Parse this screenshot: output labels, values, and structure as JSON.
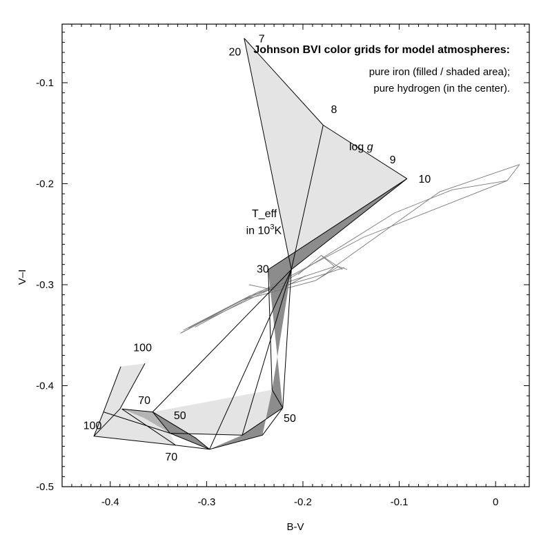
{
  "chart_data": {
    "type": "line",
    "title": "Johnson BVI color grids for model atmospheres:",
    "notes": [
      "pure iron (filled / shaded area);",
      "pure hydrogen (in the center)."
    ],
    "xlabel": "B-V",
    "ylabel": "V–I",
    "xlim": [
      -0.45,
      0.035
    ],
    "ylim": [
      -0.5,
      -0.042
    ],
    "x_ticks": [
      -0.4,
      -0.3,
      -0.2,
      -0.1,
      0
    ],
    "x_tick_labels": [
      "-0.4",
      "-0.3",
      "-0.2",
      "-0.1",
      "0"
    ],
    "y_ticks": [
      -0.1,
      -0.2,
      -0.3,
      -0.4,
      -0.5
    ],
    "y_tick_labels": [
      "-0.1",
      "-0.2",
      "-0.3",
      "-0.4",
      "-0.5"
    ],
    "grid": false,
    "colors": {
      "light_fill": "#e4e4e4",
      "mid_fill": "#b4b4b4",
      "dark_fill": "#8c8c8c",
      "iron_line": "#000000",
      "hydrogen_line": "#7a7a7a"
    },
    "iron_grid": {
      "fills": [
        {
          "shade": "light",
          "points": [
            [
              -0.261,
              -0.056
            ],
            [
              -0.179,
              -0.142
            ],
            [
              -0.092,
              -0.195
            ],
            [
              -0.212,
              -0.285
            ]
          ]
        },
        {
          "shade": "dark",
          "points": [
            [
              -0.092,
              -0.195
            ],
            [
              -0.212,
              -0.285
            ],
            [
              -0.232,
              -0.404
            ],
            [
              -0.221,
              -0.422
            ],
            [
              -0.236,
              -0.285
            ]
          ]
        },
        {
          "shade": "light",
          "points": [
            [
              -0.221,
              -0.422
            ],
            [
              -0.232,
              -0.404
            ],
            [
              -0.356,
              -0.426
            ],
            [
              -0.338,
              -0.447
            ],
            [
              -0.263,
              -0.449
            ]
          ]
        },
        {
          "shade": "dark",
          "points": [
            [
              -0.221,
              -0.422
            ],
            [
              -0.232,
              -0.404
            ],
            [
              -0.242,
              -0.449
            ],
            [
              -0.297,
              -0.463
            ],
            [
              -0.263,
              -0.449
            ]
          ]
        },
        {
          "shade": "dark",
          "points": [
            [
              -0.356,
              -0.426
            ],
            [
              -0.338,
              -0.447
            ],
            [
              -0.297,
              -0.463
            ],
            [
              -0.311,
              -0.452
            ]
          ]
        },
        {
          "shade": "mid",
          "points": [
            [
              -0.388,
              -0.423
            ],
            [
              -0.356,
              -0.426
            ],
            [
              -0.338,
              -0.447
            ],
            [
              -0.365,
              -0.432
            ]
          ]
        },
        {
          "shade": "light",
          "points": [
            [
              -0.364,
              -0.378
            ],
            [
              -0.39,
              -0.423
            ],
            [
              -0.417,
              -0.45
            ],
            [
              -0.407,
              -0.426
            ],
            [
              -0.389,
              -0.381
            ]
          ]
        },
        {
          "shade": "light",
          "points": [
            [
              -0.39,
              -0.423
            ],
            [
              -0.417,
              -0.45
            ],
            [
              -0.332,
              -0.459
            ],
            [
              -0.338,
              -0.447
            ],
            [
              -0.365,
              -0.432
            ]
          ]
        }
      ],
      "lines": [
        [
          [
            -0.261,
            -0.056
          ],
          [
            -0.179,
            -0.142
          ],
          [
            -0.092,
            -0.195
          ]
        ],
        [
          [
            -0.261,
            -0.056
          ],
          [
            -0.212,
            -0.285
          ]
        ],
        [
          [
            -0.179,
            -0.142
          ],
          [
            -0.212,
            -0.285
          ]
        ],
        [
          [
            -0.092,
            -0.195
          ],
          [
            -0.212,
            -0.285
          ]
        ],
        [
          [
            -0.092,
            -0.195
          ],
          [
            -0.236,
            -0.285
          ],
          [
            -0.232,
            -0.404
          ]
        ],
        [
          [
            -0.212,
            -0.285
          ],
          [
            -0.221,
            -0.422
          ]
        ],
        [
          [
            -0.212,
            -0.285
          ],
          [
            -0.356,
            -0.426
          ]
        ],
        [
          [
            -0.212,
            -0.285
          ],
          [
            -0.263,
            -0.449
          ]
        ],
        [
          [
            -0.212,
            -0.285
          ],
          [
            -0.297,
            -0.463
          ]
        ],
        [
          [
            -0.356,
            -0.426
          ],
          [
            -0.338,
            -0.447
          ],
          [
            -0.297,
            -0.463
          ],
          [
            -0.242,
            -0.449
          ],
          [
            -0.221,
            -0.422
          ],
          [
            -0.232,
            -0.404
          ]
        ],
        [
          [
            -0.356,
            -0.426
          ],
          [
            -0.311,
            -0.452
          ],
          [
            -0.297,
            -0.463
          ]
        ],
        [
          [
            -0.388,
            -0.423
          ],
          [
            -0.356,
            -0.426
          ]
        ],
        [
          [
            -0.388,
            -0.423
          ],
          [
            -0.332,
            -0.459
          ],
          [
            -0.297,
            -0.463
          ]
        ],
        [
          [
            -0.364,
            -0.378
          ],
          [
            -0.39,
            -0.423
          ],
          [
            -0.417,
            -0.45
          ],
          [
            -0.332,
            -0.459
          ]
        ],
        [
          [
            -0.389,
            -0.381
          ],
          [
            -0.407,
            -0.426
          ],
          [
            -0.417,
            -0.45
          ]
        ],
        [
          [
            -0.407,
            -0.426
          ],
          [
            -0.338,
            -0.447
          ],
          [
            -0.263,
            -0.449
          ],
          [
            -0.221,
            -0.422
          ]
        ]
      ]
    },
    "hydrogen_grid": {
      "lines": [
        [
          [
            -0.327,
            -0.348
          ],
          [
            -0.262,
            -0.315
          ],
          [
            -0.187,
            -0.296
          ],
          [
            -0.163,
            -0.282
          ],
          [
            -0.154,
            -0.285
          ]
        ],
        [
          [
            -0.324,
            -0.345
          ],
          [
            -0.255,
            -0.311
          ],
          [
            -0.176,
            -0.289
          ],
          [
            -0.157,
            -0.283
          ]
        ],
        [
          [
            -0.319,
            -0.343
          ],
          [
            -0.246,
            -0.307
          ],
          [
            -0.167,
            -0.282
          ],
          [
            -0.058,
            -0.208
          ],
          [
            0.025,
            -0.181
          ]
        ],
        [
          [
            -0.312,
            -0.342
          ],
          [
            -0.236,
            -0.303
          ],
          [
            -0.137,
            -0.253
          ],
          [
            0.012,
            -0.197
          ],
          [
            0.025,
            -0.181
          ]
        ],
        [
          [
            -0.305,
            -0.337
          ],
          [
            -0.224,
            -0.3
          ],
          [
            -0.105,
            -0.229
          ],
          [
            -0.045,
            -0.206
          ],
          [
            0.012,
            -0.197
          ]
        ],
        [
          [
            -0.205,
            -0.29
          ],
          [
            -0.181,
            -0.271
          ],
          [
            -0.159,
            -0.285
          ]
        ],
        [
          [
            -0.181,
            -0.271
          ],
          [
            -0.167,
            -0.282
          ]
        ],
        [
          [
            -0.327,
            -0.348
          ],
          [
            -0.305,
            -0.337
          ]
        ],
        [
          [
            -0.262,
            -0.315
          ],
          [
            -0.224,
            -0.3
          ]
        ],
        [
          [
            -0.187,
            -0.296
          ],
          [
            -0.176,
            -0.289
          ],
          [
            -0.167,
            -0.282
          ]
        ],
        [
          [
            -0.256,
            -0.3
          ],
          [
            -0.226,
            -0.306
          ],
          [
            -0.197,
            -0.291
          ]
        ]
      ]
    },
    "labels": [
      {
        "text": "20",
        "x": -0.277,
        "y": -0.073
      },
      {
        "text": "7",
        "x": -0.246,
        "y": -0.06
      },
      {
        "text": "8",
        "x": -0.171,
        "y": -0.13
      },
      {
        "text": "log ",
        "italic_part": "g",
        "x": -0.152,
        "y": -0.167
      },
      {
        "text": "9",
        "x": -0.11,
        "y": -0.18
      },
      {
        "text": "10",
        "x": -0.08,
        "y": -0.199
      },
      {
        "text": "T_eff",
        "x": -0.253,
        "y": -0.233
      },
      {
        "text": "in 10",
        "sup": "3",
        "tail": "K",
        "x": -0.259,
        "y": -0.25
      },
      {
        "text": "30",
        "x": -0.248,
        "y": -0.288
      },
      {
        "text": "100",
        "x": -0.376,
        "y": -0.366
      },
      {
        "text": "70",
        "x": -0.371,
        "y": -0.418
      },
      {
        "text": "50",
        "x": -0.334,
        "y": -0.433
      },
      {
        "text": "100",
        "x": -0.428,
        "y": -0.443
      },
      {
        "text": "70",
        "x": -0.343,
        "y": -0.474
      },
      {
        "text": "50",
        "x": -0.22,
        "y": -0.436
      }
    ]
  }
}
